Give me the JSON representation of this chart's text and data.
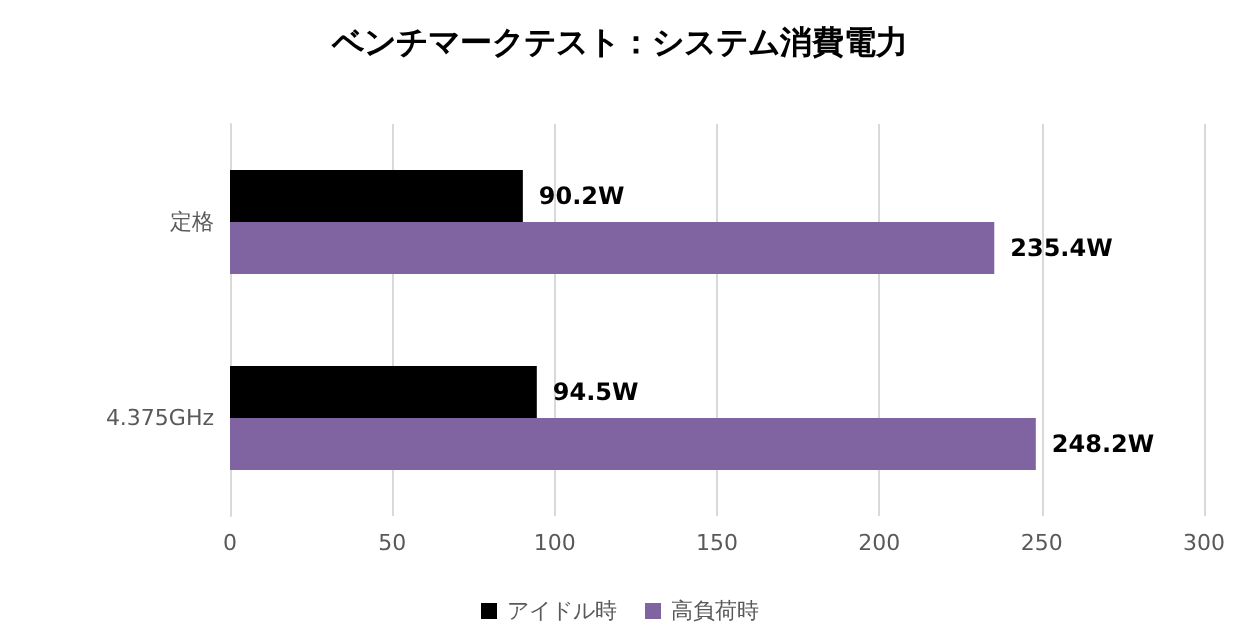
{
  "chart_data": {
    "type": "bar",
    "orientation": "horizontal",
    "title": "ベンチマークテスト：システム消費電力",
    "categories": [
      "定格",
      "4.375GHz"
    ],
    "series": [
      {
        "name": "アイドル時",
        "color": "#000000",
        "values": [
          90.2,
          94.5
        ],
        "value_labels": [
          "90.2W",
          "94.5W"
        ]
      },
      {
        "name": "高負荷時",
        "color": "#8064a2",
        "values": [
          235.4,
          248.2
        ],
        "value_labels": [
          "235.4W",
          "248.2W"
        ]
      }
    ],
    "xlim": [
      0,
      300
    ],
    "xticks": [
      0,
      50,
      100,
      150,
      200,
      250,
      300
    ],
    "grid": "x",
    "legend": "bottom"
  }
}
